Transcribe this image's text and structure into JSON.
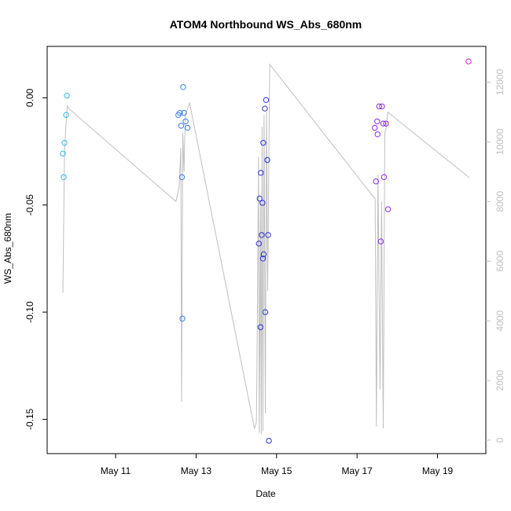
{
  "chart_data": {
    "type": "scatter",
    "title": "ATOM4 Northbound WS_Abs_680nm",
    "xlabel": "Date",
    "ylabel": "WS_Abs_680nm",
    "xlim": [
      -1.7,
      9.2
    ],
    "ylim": [
      -0.166,
      0.024
    ],
    "y2lim": [
      -450,
      13200
    ],
    "x_ticks": [
      {
        "value": 0,
        "label": "May 11"
      },
      {
        "value": 2,
        "label": "May 13"
      },
      {
        "value": 4,
        "label": "May 15"
      },
      {
        "value": 6,
        "label": "May 17"
      },
      {
        "value": 8,
        "label": "May 19"
      }
    ],
    "y_ticks": [
      {
        "value": 0.0,
        "label": "0.00"
      },
      {
        "value": -0.05,
        "label": "-0.05"
      },
      {
        "value": -0.1,
        "label": "-0.10"
      },
      {
        "value": -0.15,
        "label": "-0.15"
      }
    ],
    "y2_ticks": [
      {
        "value": 0,
        "label": "0"
      },
      {
        "value": 2000,
        "label": "2000"
      },
      {
        "value": 4000,
        "label": "4000"
      },
      {
        "value": 6000,
        "label": "6000"
      },
      {
        "value": 8000,
        "label": "8000"
      },
      {
        "value": 10000,
        "label": "10000"
      },
      {
        "value": 12000,
        "label": "12000"
      }
    ],
    "grid": false,
    "series": [
      {
        "color": "#2fb8e8",
        "points": [
          {
            "x": -1.31,
            "y": -0.026
          },
          {
            "x": -1.29,
            "y": -0.037
          },
          {
            "x": -1.27,
            "y": -0.021
          },
          {
            "x": -1.23,
            "y": -0.008
          },
          {
            "x": -1.21,
            "y": 0.001
          }
        ]
      },
      {
        "color": "#3a7fe6",
        "points": [
          {
            "x": 1.56,
            "y": -0.008
          },
          {
            "x": 1.6,
            "y": -0.007
          },
          {
            "x": 1.63,
            "y": -0.013
          },
          {
            "x": 1.65,
            "y": -0.037
          },
          {
            "x": 1.66,
            "y": -0.103
          },
          {
            "x": 1.7,
            "y": -0.007
          },
          {
            "x": 1.68,
            "y": 0.005
          },
          {
            "x": 1.74,
            "y": -0.011
          },
          {
            "x": 1.79,
            "y": -0.014
          }
        ]
      },
      {
        "color": "#2f2fd8",
        "points": [
          {
            "x": 3.56,
            "y": -0.068
          },
          {
            "x": 3.58,
            "y": -0.047
          },
          {
            "x": 3.6,
            "y": -0.107
          },
          {
            "x": 3.61,
            "y": -0.035
          },
          {
            "x": 3.63,
            "y": -0.064
          },
          {
            "x": 3.65,
            "y": -0.049
          },
          {
            "x": 3.66,
            "y": -0.075
          },
          {
            "x": 3.68,
            "y": -0.073
          },
          {
            "x": 3.67,
            "y": -0.021
          },
          {
            "x": 3.72,
            "y": -0.1
          },
          {
            "x": 3.71,
            "y": -0.005
          },
          {
            "x": 3.74,
            "y": -0.001
          },
          {
            "x": 3.77,
            "y": -0.029
          },
          {
            "x": 3.79,
            "y": -0.064
          },
          {
            "x": 3.81,
            "y": -0.16
          }
        ]
      },
      {
        "color": "#8a2be2",
        "points": [
          {
            "x": 6.44,
            "y": -0.014
          },
          {
            "x": 6.47,
            "y": -0.039
          },
          {
            "x": 6.5,
            "y": -0.011
          },
          {
            "x": 6.51,
            "y": -0.017
          },
          {
            "x": 6.55,
            "y": -0.004
          },
          {
            "x": 6.59,
            "y": -0.067
          },
          {
            "x": 6.62,
            "y": -0.004
          },
          {
            "x": 6.65,
            "y": -0.012
          },
          {
            "x": 6.67,
            "y": -0.037
          },
          {
            "x": 6.72,
            "y": -0.012
          },
          {
            "x": 6.77,
            "y": -0.052
          }
        ]
      },
      {
        "color": "#d21fd2",
        "points": [
          {
            "x": 8.77,
            "y": 0.017
          }
        ]
      }
    ],
    "line_series": {
      "axis": "right",
      "color": "#bfbfbf",
      "points": [
        {
          "x": -1.31,
          "y": 4950
        },
        {
          "x": -1.27,
          "y": 9600
        },
        {
          "x": -1.24,
          "y": 10400
        },
        {
          "x": -1.2,
          "y": 11200
        },
        {
          "x": -1.15,
          "y": 11100
        },
        {
          "x": 1.5,
          "y": 8000
        },
        {
          "x": 1.58,
          "y": 8500
        },
        {
          "x": 1.62,
          "y": 9800
        },
        {
          "x": 1.64,
          "y": 1300
        },
        {
          "x": 1.67,
          "y": 10300
        },
        {
          "x": 1.7,
          "y": 9000
        },
        {
          "x": 1.73,
          "y": 10900
        },
        {
          "x": 1.84,
          "y": 11300
        },
        {
          "x": 3.45,
          "y": 400
        },
        {
          "x": 3.5,
          "y": 600
        },
        {
          "x": 3.53,
          "y": 5000
        },
        {
          "x": 3.55,
          "y": 9500
        },
        {
          "x": 3.57,
          "y": 250
        },
        {
          "x": 3.6,
          "y": 8000
        },
        {
          "x": 3.62,
          "y": 200
        },
        {
          "x": 3.64,
          "y": 10500
        },
        {
          "x": 3.66,
          "y": 300
        },
        {
          "x": 3.69,
          "y": 10900
        },
        {
          "x": 3.72,
          "y": 900
        },
        {
          "x": 3.75,
          "y": 11000
        },
        {
          "x": 3.78,
          "y": 5000
        },
        {
          "x": 3.83,
          "y": 12600
        },
        {
          "x": 6.38,
          "y": 8200
        },
        {
          "x": 6.45,
          "y": 8100
        },
        {
          "x": 6.48,
          "y": 450
        },
        {
          "x": 6.52,
          "y": 8900
        },
        {
          "x": 6.57,
          "y": 1700
        },
        {
          "x": 6.61,
          "y": 8000
        },
        {
          "x": 6.65,
          "y": 400
        },
        {
          "x": 6.69,
          "y": 10300
        },
        {
          "x": 6.73,
          "y": 10500
        },
        {
          "x": 6.76,
          "y": 11000
        },
        {
          "x": 8.79,
          "y": 8800
        }
      ]
    }
  }
}
